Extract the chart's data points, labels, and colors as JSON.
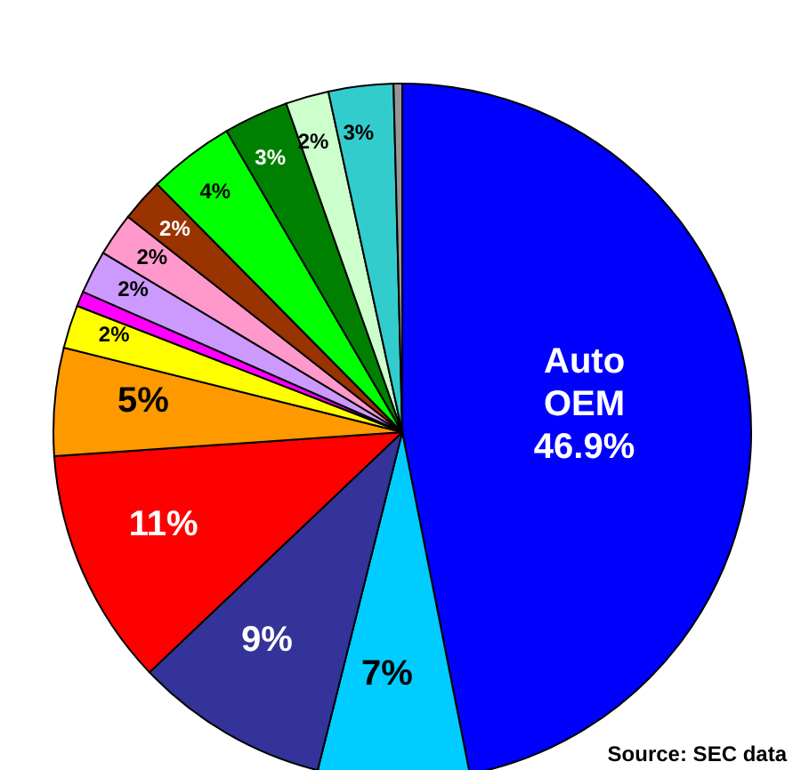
{
  "chart_data": {
    "type": "pie",
    "categories": [
      "Auto OEM",
      null,
      null,
      null,
      null,
      null,
      null,
      null,
      null,
      null,
      null,
      null,
      null,
      null,
      null
    ],
    "values": [
      46.9,
      7,
      9,
      11,
      5,
      2,
      0.7,
      2,
      2,
      2,
      4,
      3,
      2,
      3,
      0.4
    ],
    "colors": [
      "#0000ff",
      "#00ccff",
      "#333399",
      "#ff0000",
      "#ff9900",
      "#ffff00",
      "#ff00ff",
      "#cc99ff",
      "#ff99cc",
      "#993300",
      "#00ff00",
      "#008000",
      "#ccffcc",
      "#33cccc",
      "#969696"
    ],
    "value_labels": [
      "46.9%",
      "7%",
      "9%",
      "11%",
      "5%",
      "2%",
      null,
      "2%",
      "2%",
      "2%",
      "4%",
      "3%",
      "2%",
      "3%",
      null
    ],
    "annotations": [
      "Source: SEC data"
    ]
  }
}
